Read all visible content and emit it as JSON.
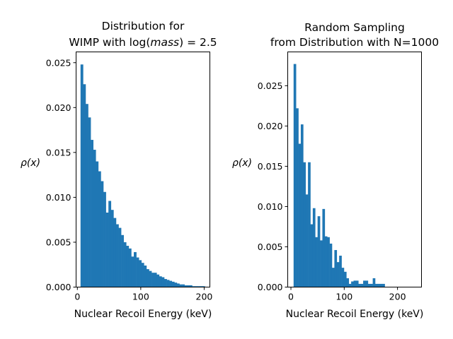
{
  "chart_data": [
    {
      "type": "bar",
      "title_line1": "Distribution for",
      "title_line2_prefix": "WIMP with log(",
      "title_line2_italic": "mass",
      "title_line2_suffix": ") = 2.5",
      "xlabel": "Nuclear Recoil Energy (keV)",
      "ylabel": "ρ(x)",
      "xlim": [
        -2,
        209
      ],
      "ylim": [
        0,
        0.0262
      ],
      "xticks": [
        0,
        100,
        200
      ],
      "yticks": [
        0.0,
        0.005,
        0.01,
        0.015,
        0.02,
        0.025
      ],
      "ytick_labels": [
        "0.000",
        "0.005",
        "0.010",
        "0.015",
        "0.020",
        "0.025"
      ],
      "bin_start": 5,
      "bin_width": 4,
      "values": [
        0.0248,
        0.0226,
        0.0204,
        0.0189,
        0.0164,
        0.0153,
        0.014,
        0.0129,
        0.0118,
        0.0106,
        0.0083,
        0.0096,
        0.0086,
        0.0077,
        0.007,
        0.0066,
        0.0058,
        0.005,
        0.0046,
        0.0043,
        0.0034,
        0.0039,
        0.0033,
        0.003,
        0.0027,
        0.0024,
        0.002,
        0.0018,
        0.0016,
        0.0016,
        0.0014,
        0.0012,
        0.0011,
        0.0009,
        0.0008,
        0.0007,
        0.0006,
        0.0005,
        0.0004,
        0.0003,
        0.0003,
        0.0002,
        0.0002,
        0.0002,
        0.0001,
        0.0001,
        0.0001,
        0.0001,
        0.0001
      ]
    },
    {
      "type": "bar",
      "title_line1": "Random Sampling",
      "title_line2": "from Distribution with N=1000",
      "xlabel": "Nuclear Recoil Energy (keV)",
      "ylabel": "ρ(x)",
      "xlim": [
        -6,
        245
      ],
      "ylim": [
        0,
        0.0292
      ],
      "xticks": [
        0,
        100,
        200
      ],
      "yticks": [
        0.0,
        0.005,
        0.01,
        0.015,
        0.02,
        0.025
      ],
      "ytick_labels": [
        "0.000",
        "0.005",
        "0.010",
        "0.015",
        "0.020",
        "0.025"
      ],
      "bin_start": 5,
      "bin_width": 4.5,
      "values": [
        0.0277,
        0.0222,
        0.0178,
        0.0202,
        0.0155,
        0.0115,
        0.0155,
        0.0078,
        0.0098,
        0.0062,
        0.0088,
        0.0058,
        0.0097,
        0.0063,
        0.0062,
        0.0054,
        0.0024,
        0.0046,
        0.0031,
        0.0039,
        0.0024,
        0.0019,
        0.0011,
        0.0004,
        0.0007,
        0.0008,
        0.0008,
        0.0004,
        0.0004,
        0.0008,
        0.0008,
        0.0004,
        0.0004,
        0.0011,
        0.0004,
        0.0004,
        0.0004,
        0.0004
      ]
    }
  ],
  "colors": {
    "bar": "#1f77b4",
    "frame": "#000000"
  }
}
